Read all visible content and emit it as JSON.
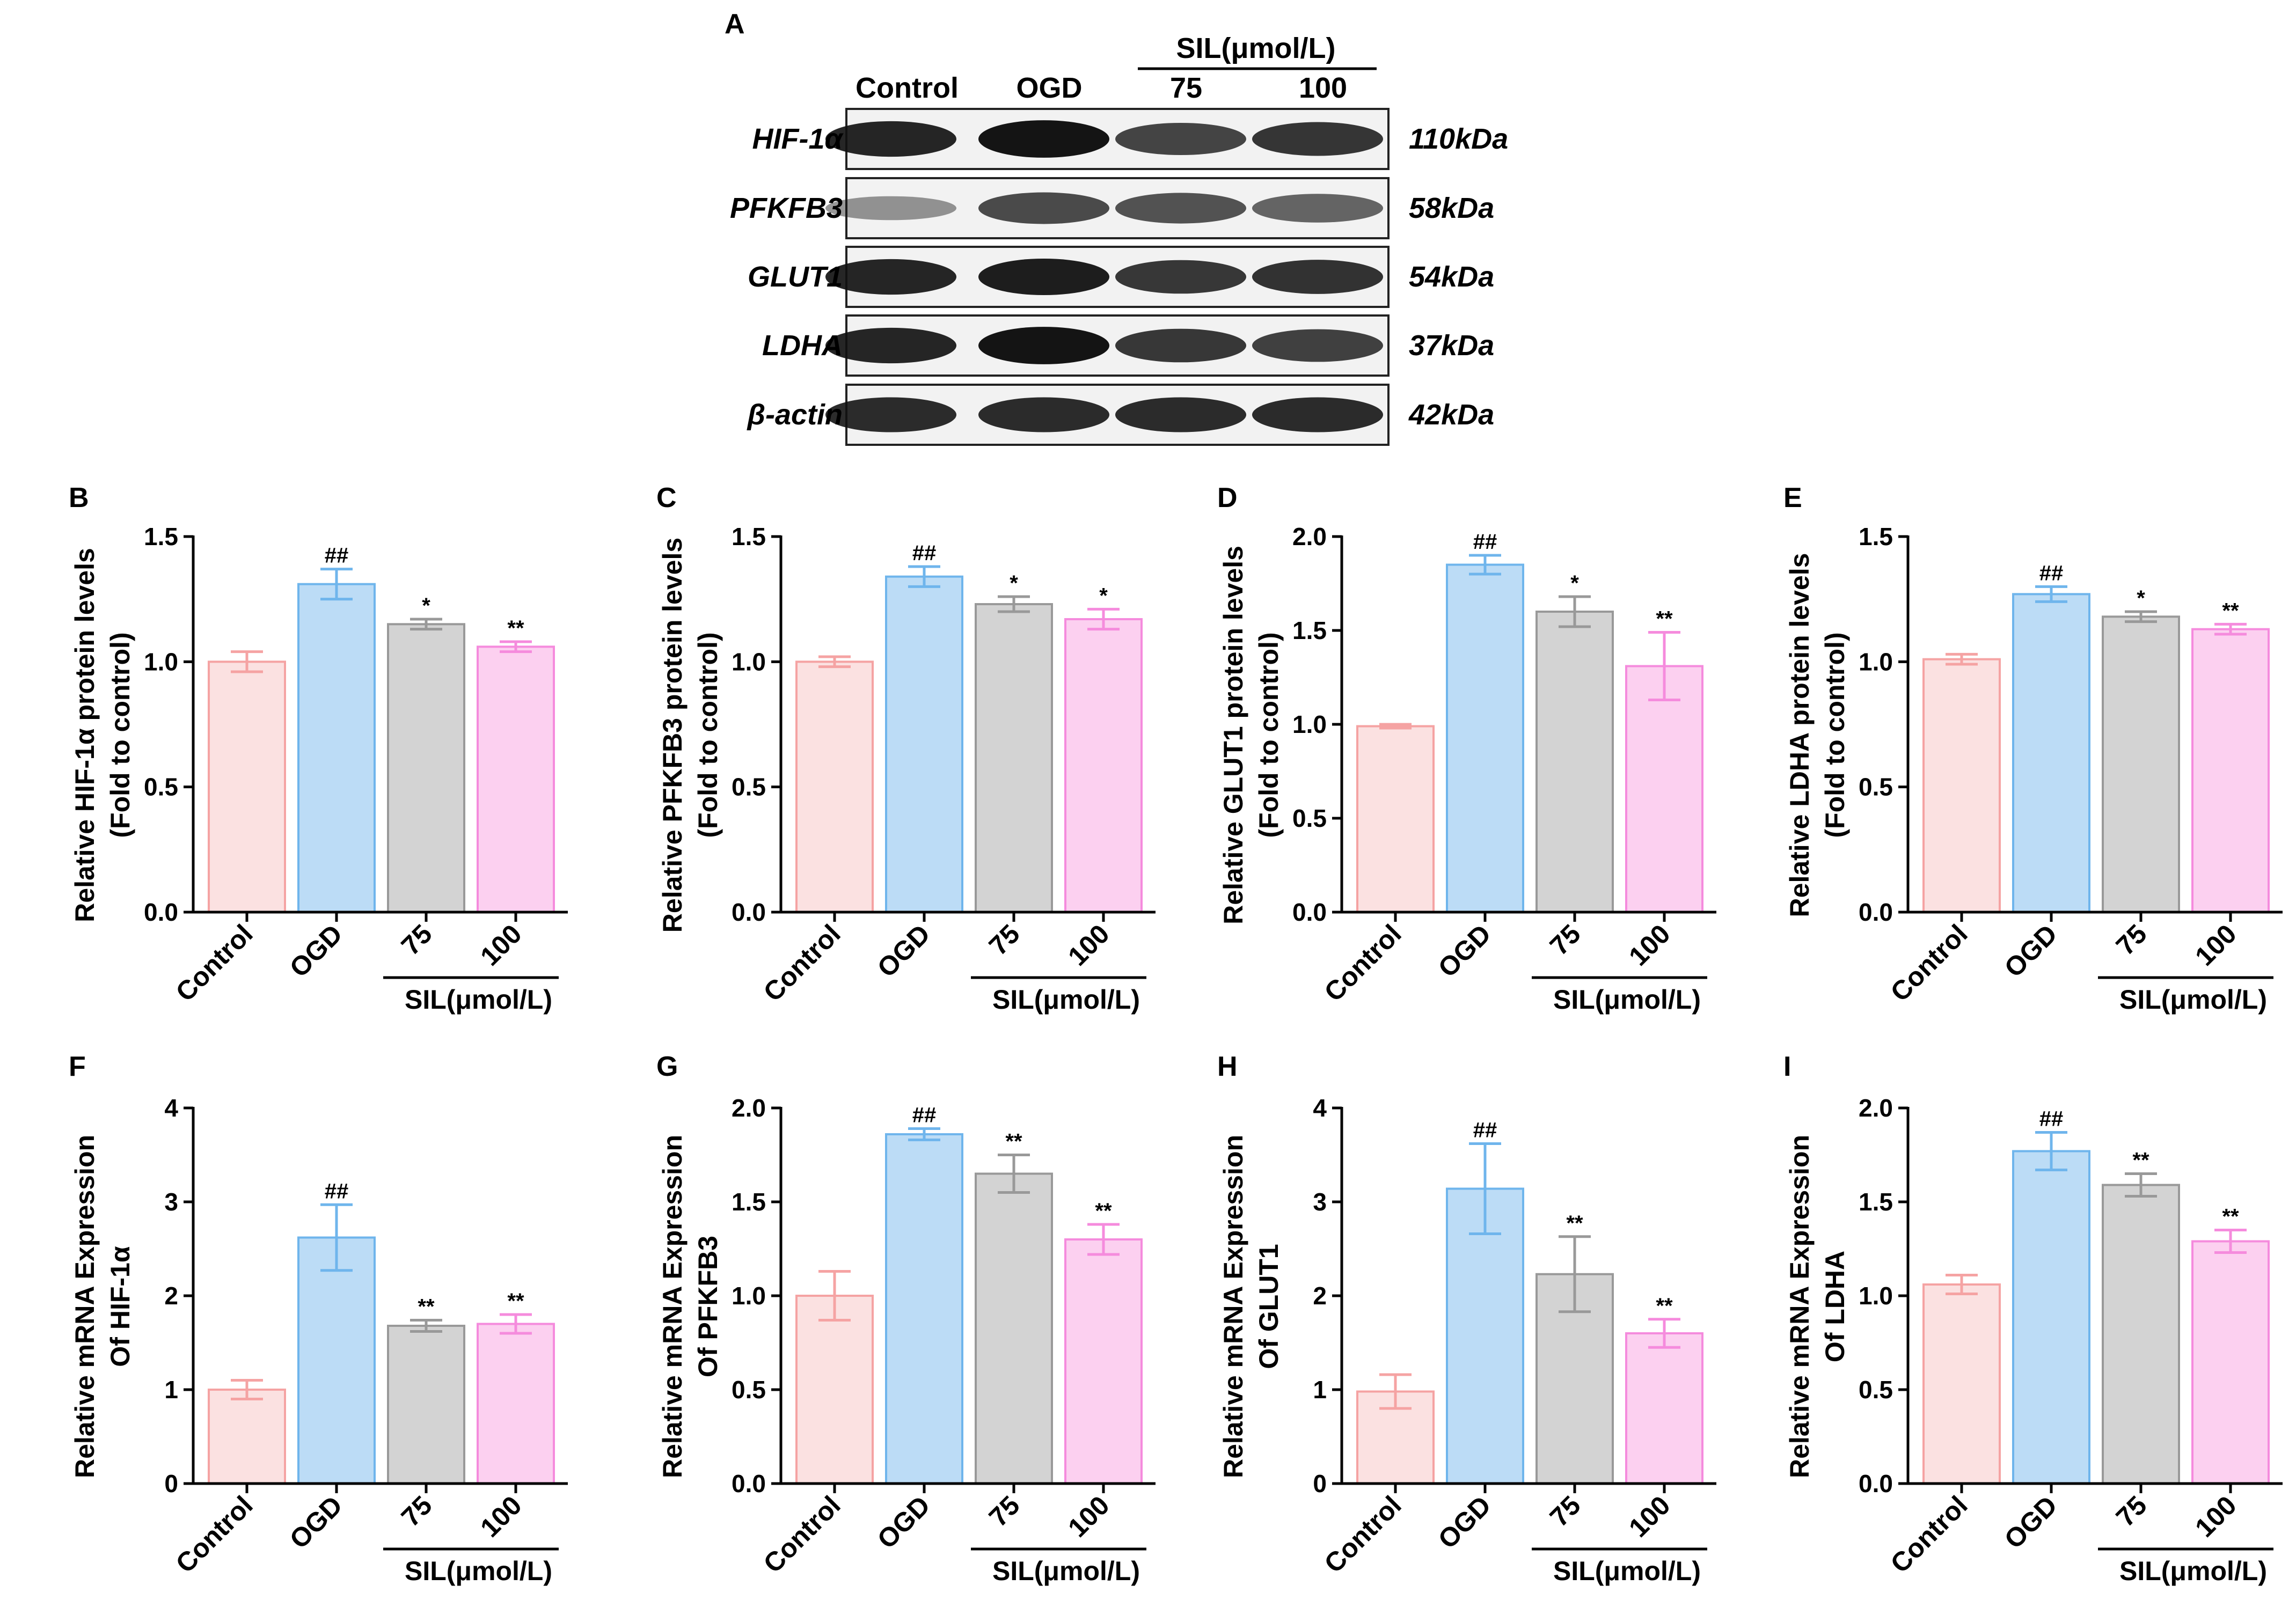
{
  "blot": {
    "panel_letter": "A",
    "group_header": "SIL(μmol/L)",
    "lanes": [
      "Control",
      "OGD",
      "75",
      "100"
    ],
    "proteins": [
      {
        "name": "HIF-1α",
        "size": "110kDa",
        "intensity": [
          0.95,
          1.05,
          0.78,
          0.86
        ]
      },
      {
        "name": "PFKFB3",
        "size": "58kDa",
        "intensity": [
          0.35,
          0.75,
          0.7,
          0.6
        ]
      },
      {
        "name": "GLUT1",
        "size": "54kDa",
        "intensity": [
          0.95,
          1.0,
          0.85,
          0.88
        ]
      },
      {
        "name": "LDHA",
        "size": "37kDa",
        "intensity": [
          0.95,
          1.05,
          0.85,
          0.8
        ]
      },
      {
        "name": "β-actin",
        "size": "42kDa",
        "intensity": [
          0.92,
          0.92,
          0.92,
          0.92
        ]
      }
    ]
  },
  "chart_data": [
    {
      "panel": "B",
      "type": "bar",
      "categories": [
        "Control",
        "OGD",
        "75",
        "100"
      ],
      "group_label": "SIL(μmol/L)",
      "ylabel": [
        "Relative HIF-1α protein levels",
        "(Fold to control)"
      ],
      "ylim": [
        0,
        1.5
      ],
      "yticks": [
        "0.0",
        "0.5",
        "1.0",
        "1.5"
      ],
      "values": [
        1.0,
        1.31,
        1.15,
        1.06
      ],
      "errors": [
        0.04,
        0.06,
        0.02,
        0.02
      ],
      "significance": [
        "",
        "##",
        "*",
        "**"
      ]
    },
    {
      "panel": "C",
      "type": "bar",
      "categories": [
        "Control",
        "OGD",
        "75",
        "100"
      ],
      "group_label": "SIL(μmol/L)",
      "ylabel": [
        "Relative PFKFB3 protein levels",
        "(Fold to control)"
      ],
      "ylim": [
        0,
        1.5
      ],
      "yticks": [
        "0.0",
        "0.5",
        "1.0",
        "1.5"
      ],
      "values": [
        1.0,
        1.34,
        1.23,
        1.17
      ],
      "errors": [
        0.02,
        0.04,
        0.03,
        0.04
      ],
      "significance": [
        "",
        "##",
        "*",
        "*"
      ]
    },
    {
      "panel": "D",
      "type": "bar",
      "categories": [
        "Control",
        "OGD",
        "75",
        "100"
      ],
      "group_label": "SIL(μmol/L)",
      "ylabel": [
        "Relative GLUT1 protein levels",
        "(Fold to control)"
      ],
      "ylim": [
        0,
        2.0
      ],
      "yticks": [
        "0.0",
        "0.5",
        "1.0",
        "1.5",
        "2.0"
      ],
      "values": [
        0.99,
        1.85,
        1.6,
        1.31
      ],
      "errors": [
        0.01,
        0.05,
        0.08,
        0.18
      ],
      "significance": [
        "",
        "##",
        "*",
        "**"
      ]
    },
    {
      "panel": "E",
      "type": "bar",
      "categories": [
        "Control",
        "OGD",
        "75",
        "100"
      ],
      "group_label": "SIL(μmol/L)",
      "ylabel": [
        "Relative LDHA protein levels",
        "(Fold to control)"
      ],
      "ylim": [
        0,
        1.5
      ],
      "yticks": [
        "0.0",
        "0.5",
        "1.0",
        "1.5"
      ],
      "values": [
        1.01,
        1.27,
        1.18,
        1.13
      ],
      "errors": [
        0.02,
        0.03,
        0.02,
        0.02
      ],
      "significance": [
        "",
        "##",
        "*",
        "**"
      ]
    },
    {
      "panel": "F",
      "type": "bar",
      "categories": [
        "Control",
        "OGD",
        "75",
        "100"
      ],
      "group_label": "SIL(μmol/L)",
      "ylabel": [
        "Relative mRNA Expression",
        "Of HIF-1α"
      ],
      "ylim": [
        0,
        4
      ],
      "yticks": [
        "0",
        "1",
        "2",
        "3",
        "4"
      ],
      "values": [
        1.0,
        2.62,
        1.68,
        1.7
      ],
      "errors": [
        0.1,
        0.35,
        0.06,
        0.1
      ],
      "significance": [
        "",
        "##",
        "**",
        "**"
      ]
    },
    {
      "panel": "G",
      "type": "bar",
      "categories": [
        "Control",
        "OGD",
        "75",
        "100"
      ],
      "group_label": "SIL(μmol/L)",
      "ylabel": [
        "Relative mRNA Expression",
        "Of PFKFB3"
      ],
      "ylim": [
        0,
        2.0
      ],
      "yticks": [
        "0.0",
        "0.5",
        "1.0",
        "1.5",
        "2.0"
      ],
      "values": [
        1.0,
        1.86,
        1.65,
        1.3
      ],
      "errors": [
        0.13,
        0.03,
        0.1,
        0.08
      ],
      "significance": [
        "",
        "##",
        "**",
        "**"
      ]
    },
    {
      "panel": "H",
      "type": "bar",
      "categories": [
        "Control",
        "OGD",
        "75",
        "100"
      ],
      "group_label": "SIL(μmol/L)",
      "ylabel": [
        "Relative mRNA Expression",
        "Of GLUT1"
      ],
      "ylim": [
        0,
        4
      ],
      "yticks": [
        "0",
        "1",
        "2",
        "3",
        "4"
      ],
      "values": [
        0.98,
        3.14,
        2.23,
        1.6
      ],
      "errors": [
        0.18,
        0.48,
        0.4,
        0.15
      ],
      "significance": [
        "",
        "##",
        "**",
        "**"
      ]
    },
    {
      "panel": "I",
      "type": "bar",
      "categories": [
        "Control",
        "OGD",
        "75",
        "100"
      ],
      "group_label": "SIL(μmol/L)",
      "ylabel": [
        "Relative mRNA Expression",
        "Of LDHA"
      ],
      "ylim": [
        0,
        2.0
      ],
      "yticks": [
        "0.0",
        "0.5",
        "1.0",
        "1.5",
        "2.0"
      ],
      "values": [
        1.06,
        1.77,
        1.59,
        1.29
      ],
      "errors": [
        0.05,
        0.1,
        0.06,
        0.06
      ],
      "significance": [
        "",
        "##",
        "**",
        "**"
      ]
    }
  ],
  "colors": {
    "fills": [
      "#fbe1e1",
      "#bcdcf6",
      "#d3d3d3",
      "#fcd0f0"
    ],
    "strokes": [
      "#f5a3a3",
      "#6fb5ec",
      "#999999",
      "#f58bdd"
    ]
  }
}
